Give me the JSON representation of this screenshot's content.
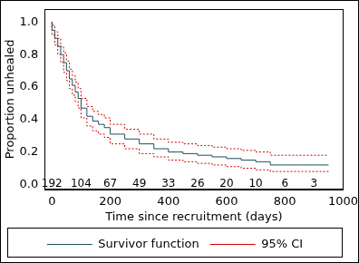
{
  "chart_data": {
    "type": "line",
    "x_label": "Time since recruitment (days)",
    "y_label": "Proportion unhealed",
    "x": [
      0,
      10,
      20,
      30,
      40,
      50,
      60,
      70,
      80,
      90,
      100,
      120,
      140,
      160,
      180,
      200,
      250,
      300,
      350,
      400,
      450,
      500,
      550,
      600,
      650,
      700,
      750,
      800,
      850,
      900,
      950
    ],
    "series": [
      {
        "name": "Survivor function",
        "color": "#1f4e5a",
        "line_style": "solid",
        "marker": "none",
        "values": [
          1.0,
          0.95,
          0.9,
          0.85,
          0.8,
          0.75,
          0.7,
          0.65,
          0.61,
          0.57,
          0.53,
          0.47,
          0.42,
          0.39,
          0.37,
          0.35,
          0.31,
          0.28,
          0.25,
          0.22,
          0.2,
          0.19,
          0.18,
          0.17,
          0.16,
          0.15,
          0.14,
          0.12,
          0.12,
          0.12,
          0.12
        ]
      },
      {
        "name": "95% CI",
        "color": "#d40000",
        "line_style": "dotted",
        "marker": "none",
        "lower": [
          1.0,
          0.92,
          0.86,
          0.8,
          0.75,
          0.69,
          0.64,
          0.59,
          0.55,
          0.51,
          0.47,
          0.41,
          0.36,
          0.33,
          0.31,
          0.29,
          0.25,
          0.22,
          0.19,
          0.17,
          0.15,
          0.14,
          0.13,
          0.12,
          0.11,
          0.1,
          0.09,
          0.08,
          0.08,
          0.08,
          0.08
        ],
        "upper": [
          1.0,
          0.98,
          0.94,
          0.9,
          0.85,
          0.81,
          0.76,
          0.71,
          0.67,
          0.63,
          0.59,
          0.53,
          0.48,
          0.45,
          0.43,
          0.41,
          0.37,
          0.34,
          0.31,
          0.28,
          0.26,
          0.25,
          0.24,
          0.23,
          0.22,
          0.21,
          0.2,
          0.18,
          0.18,
          0.18,
          0.18
        ]
      }
    ],
    "annotations": {
      "x": [
        0,
        100,
        200,
        300,
        400,
        500,
        600,
        700,
        800,
        900
      ],
      "values": [
        192,
        104,
        67,
        49,
        33,
        26,
        20,
        10,
        6,
        3
      ]
    },
    "xlim": [
      -25,
      1000
    ],
    "xticks": [
      0,
      200,
      400,
      600,
      800,
      1000
    ],
    "ylim": [
      -0.03,
      1.08
    ],
    "yticks": [
      {
        "value": 0,
        "label": "0.0"
      },
      {
        "value": 0.2,
        "label": "0.2"
      },
      {
        "value": 0.4,
        "label": "0.4"
      },
      {
        "value": 0.6,
        "label": "0.6"
      },
      {
        "value": 0.8,
        "label": "0.8"
      },
      {
        "value": 1,
        "label": "1.0"
      }
    ],
    "grid": false,
    "legend": "bottom"
  }
}
